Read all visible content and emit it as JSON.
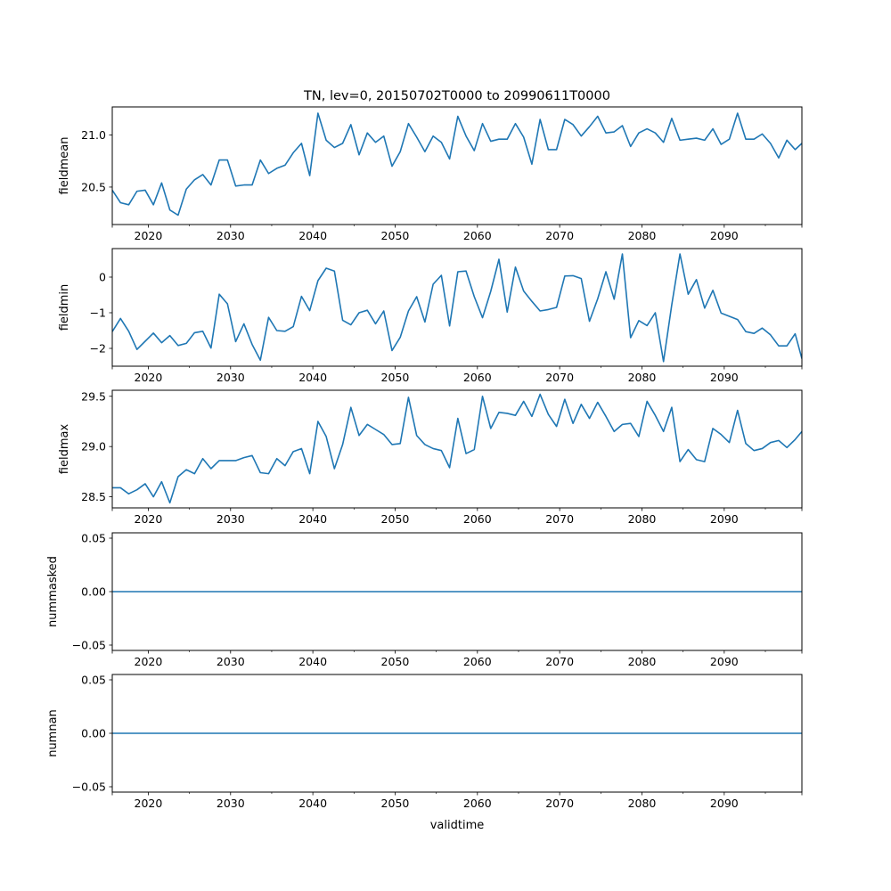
{
  "figure": {
    "title": "TN, lev=0, 20150702T0000 to 20990611T0000",
    "xlabel": "validtime",
    "line_color": "#1f77b4"
  },
  "chart_data": [
    {
      "type": "line",
      "ylabel": "fieldmean",
      "xlim": [
        2015.62,
        2099.44
      ],
      "ylim": [
        20.14,
        21.27
      ],
      "yticks": [
        20.5,
        21.0
      ],
      "ytick_labels": [
        "20.5",
        "21.0"
      ],
      "xticks": [
        2020,
        2030,
        2040,
        2050,
        2060,
        2070,
        2080,
        2090
      ],
      "xtick_labels": [
        "2020",
        "2030",
        "2040",
        "2050",
        "2060",
        "2070",
        "2080",
        "2090"
      ],
      "x_start": 2015.62,
      "x_step": 1,
      "values": [
        20.47,
        20.35,
        20.33,
        20.46,
        20.47,
        20.33,
        20.54,
        20.28,
        20.23,
        20.48,
        20.57,
        20.62,
        20.52,
        20.76,
        20.76,
        20.51,
        20.52,
        20.52,
        20.76,
        20.63,
        20.68,
        20.71,
        20.83,
        20.92,
        20.61,
        21.21,
        20.95,
        20.88,
        20.92,
        21.1,
        20.81,
        21.02,
        20.93,
        20.99,
        20.7,
        20.84,
        21.11,
        20.98,
        20.84,
        20.99,
        20.93,
        20.77,
        21.18,
        20.99,
        20.85,
        21.11,
        20.94,
        20.96,
        20.96,
        21.11,
        20.98,
        20.72,
        21.15,
        20.86,
        20.86,
        21.15,
        21.1,
        20.99,
        21.08,
        21.18,
        21.02,
        21.03,
        21.09,
        20.89,
        21.02,
        21.06,
        21.02,
        20.93,
        21.16,
        20.95,
        20.96,
        20.97,
        20.95,
        21.06,
        20.91,
        20.96,
        21.21,
        20.96,
        20.96,
        21.01,
        20.92,
        20.78,
        20.95,
        20.86,
        20.92
      ]
    },
    {
      "type": "line",
      "ylabel": "fieldmin",
      "xlim": [
        2015.62,
        2099.44
      ],
      "ylim": [
        -2.5,
        0.8
      ],
      "yticks": [
        -2,
        -1,
        0
      ],
      "ytick_labels": [
        "−2",
        "−1",
        "0"
      ],
      "xticks": [
        2020,
        2030,
        2040,
        2050,
        2060,
        2070,
        2080,
        2090
      ],
      "xtick_labels": [
        "2020",
        "2030",
        "2040",
        "2050",
        "2060",
        "2070",
        "2080",
        "2090"
      ],
      "x_start": 2015.62,
      "x_step": 1,
      "values": [
        -1.53,
        -1.16,
        -1.52,
        -2.03,
        -1.8,
        -1.57,
        -1.84,
        -1.64,
        -1.92,
        -1.86,
        -1.56,
        -1.52,
        -1.99,
        -0.48,
        -0.75,
        -1.81,
        -1.31,
        -1.89,
        -2.33,
        -1.13,
        -1.5,
        -1.52,
        -1.39,
        -0.54,
        -0.94,
        -0.1,
        0.25,
        0.17,
        -1.21,
        -1.34,
        -1.0,
        -0.93,
        -1.31,
        -0.95,
        -2.06,
        -1.69,
        -0.95,
        -0.55,
        -1.26,
        -0.2,
        0.05,
        -1.37,
        0.15,
        0.17,
        -0.55,
        -1.14,
        -0.4,
        0.5,
        -0.98,
        0.28,
        -0.39,
        -0.68,
        -0.95,
        -0.91,
        -0.85,
        0.03,
        0.04,
        -0.04,
        -1.24,
        -0.61,
        0.15,
        -0.62,
        0.65,
        -1.7,
        -1.22,
        -1.36,
        -1.0,
        -2.37,
        -0.78,
        0.65,
        -0.48,
        -0.07,
        -0.87,
        -0.37,
        -1.01,
        -1.1,
        -1.19,
        -1.53,
        -1.58,
        -1.43,
        -1.62,
        -1.93,
        -1.93,
        -1.59,
        -2.29
      ]
    },
    {
      "type": "line",
      "ylabel": "fieldmax",
      "xlim": [
        2015.62,
        2099.44
      ],
      "ylim": [
        28.39,
        29.56
      ],
      "yticks": [
        28.5,
        29.0,
        29.5
      ],
      "ytick_labels": [
        "28.5",
        "29.0",
        "29.5"
      ],
      "xticks": [
        2020,
        2030,
        2040,
        2050,
        2060,
        2070,
        2080,
        2090
      ],
      "xtick_labels": [
        "2020",
        "2030",
        "2040",
        "2050",
        "2060",
        "2070",
        "2080",
        "2090"
      ],
      "x_start": 2015.62,
      "x_step": 1,
      "values": [
        28.59,
        28.59,
        28.53,
        28.57,
        28.63,
        28.5,
        28.65,
        28.44,
        28.7,
        28.77,
        28.73,
        28.88,
        28.78,
        28.86,
        28.86,
        28.86,
        28.89,
        28.91,
        28.74,
        28.73,
        28.88,
        28.81,
        28.95,
        28.98,
        28.73,
        29.25,
        29.1,
        28.78,
        29.02,
        29.39,
        29.11,
        29.22,
        29.17,
        29.12,
        29.02,
        29.03,
        29.49,
        29.11,
        29.02,
        28.98,
        28.96,
        28.79,
        29.28,
        28.93,
        28.97,
        29.5,
        29.18,
        29.34,
        29.33,
        29.31,
        29.45,
        29.3,
        29.52,
        29.32,
        29.2,
        29.47,
        29.23,
        29.42,
        29.28,
        29.44,
        29.3,
        29.15,
        29.22,
        29.23,
        29.1,
        29.45,
        29.31,
        29.15,
        29.39,
        28.85,
        28.97,
        28.87,
        28.85,
        29.18,
        29.12,
        29.04,
        29.36,
        29.03,
        28.96,
        28.98,
        29.04,
        29.06,
        28.99,
        29.07,
        29.15
      ]
    },
    {
      "type": "line",
      "ylabel": "nummasked",
      "xlim": [
        2015.62,
        2099.44
      ],
      "ylim": [
        -0.055,
        0.055
      ],
      "yticks": [
        -0.05,
        0.0,
        0.05
      ],
      "ytick_labels": [
        "−0.05",
        "0.00",
        "0.05"
      ],
      "xticks": [
        2020,
        2030,
        2040,
        2050,
        2060,
        2070,
        2080,
        2090
      ],
      "xtick_labels": [
        "2020",
        "2030",
        "2040",
        "2050",
        "2060",
        "2070",
        "2080",
        "2090"
      ],
      "x_start": 2015.62,
      "x_step": 1,
      "constant_value": 0,
      "n_points": 85
    },
    {
      "type": "line",
      "ylabel": "numnan",
      "xlim": [
        2015.62,
        2099.44
      ],
      "ylim": [
        -0.055,
        0.055
      ],
      "yticks": [
        -0.05,
        0.0,
        0.05
      ],
      "ytick_labels": [
        "−0.05",
        "0.00",
        "0.05"
      ],
      "xticks": [
        2020,
        2030,
        2040,
        2050,
        2060,
        2070,
        2080,
        2090
      ],
      "xtick_labels": [
        "2020",
        "2030",
        "2040",
        "2050",
        "2060",
        "2070",
        "2080",
        "2090"
      ],
      "x_start": 2015.62,
      "x_step": 1,
      "constant_value": 0,
      "n_points": 85
    }
  ]
}
